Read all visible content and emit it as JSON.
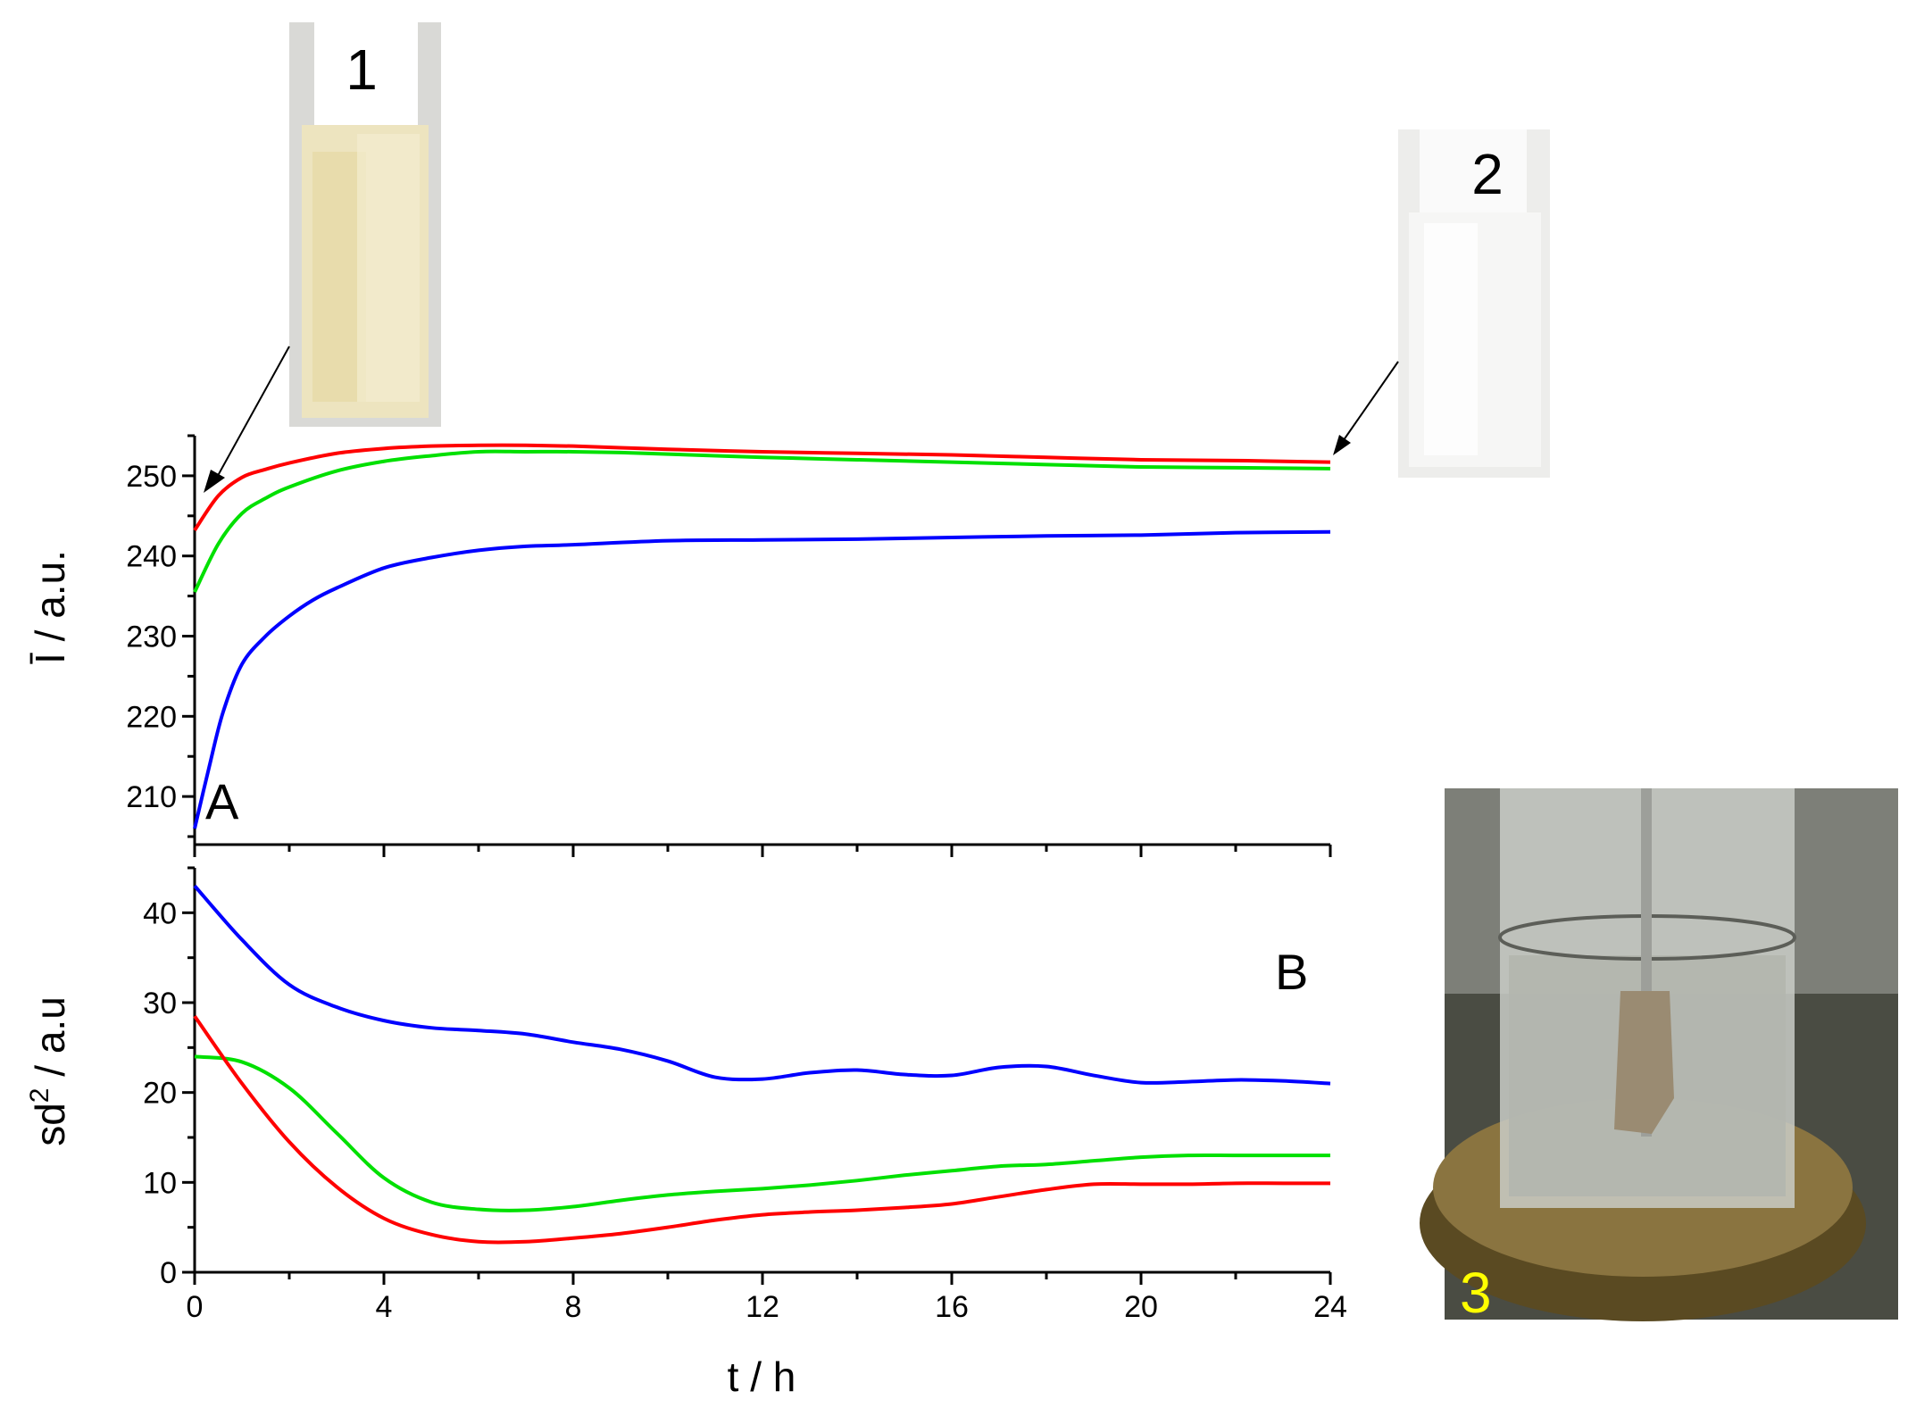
{
  "chart_data": [
    {
      "panel": "A",
      "type": "line",
      "ylabel": "Ī / a.u.",
      "xlabel": "",
      "xlim": [
        0,
        24
      ],
      "ylim": [
        204,
        255
      ],
      "yticks": [
        210,
        220,
        230,
        240,
        250
      ],
      "grid": false,
      "series": [
        {
          "color": "#ff0000",
          "x": [
            0,
            0.5,
            1,
            1.5,
            2,
            3,
            4,
            5,
            6,
            7,
            8,
            9,
            10,
            12,
            14,
            16,
            18,
            20,
            22,
            24
          ],
          "y": [
            243.2,
            247.5,
            249.8,
            250.8,
            251.6,
            252.8,
            253.4,
            253.7,
            253.8,
            253.8,
            253.7,
            253.5,
            253.3,
            253.0,
            252.8,
            252.6,
            252.3,
            252.0,
            251.9,
            251.7
          ]
        },
        {
          "color": "#00e000",
          "x": [
            0,
            0.5,
            1,
            1.5,
            2,
            3,
            4,
            5,
            6,
            7,
            8,
            9,
            10,
            12,
            14,
            16,
            18,
            20,
            22,
            24
          ],
          "y": [
            235.5,
            241.5,
            245.3,
            247.2,
            248.6,
            250.6,
            251.8,
            252.5,
            253.0,
            253.0,
            253.0,
            252.9,
            252.7,
            252.3,
            252.0,
            251.7,
            251.4,
            251.1,
            251.0,
            250.9
          ]
        },
        {
          "color": "#0000ff",
          "x": [
            0,
            0.3,
            0.6,
            1,
            1.5,
            2,
            2.5,
            3,
            4,
            5,
            6,
            7,
            8,
            10,
            12,
            14,
            16,
            18,
            20,
            22,
            24
          ],
          "y": [
            206,
            213.5,
            220.5,
            226.5,
            230,
            232.5,
            234.5,
            236,
            238.5,
            239.8,
            240.7,
            241.2,
            241.4,
            241.9,
            242.0,
            242.1,
            242.3,
            242.5,
            242.6,
            242.9,
            243.0
          ]
        }
      ]
    },
    {
      "panel": "B",
      "type": "line",
      "ylabel": "sd",
      "ylabel_sup": "2",
      "ylabel_tail": " / a.u",
      "xlabel": "t / h",
      "xlim": [
        0,
        24
      ],
      "ylim": [
        0,
        45
      ],
      "xticks": [
        0,
        4,
        8,
        12,
        16,
        20,
        24
      ],
      "yticks": [
        0,
        10,
        20,
        30,
        40
      ],
      "grid": false,
      "series": [
        {
          "color": "#0000ff",
          "x": [
            0,
            1,
            2,
            3,
            4,
            5,
            6,
            7,
            8,
            9,
            10,
            11,
            12,
            13,
            14,
            15,
            16,
            17,
            18,
            19,
            20,
            21,
            22,
            23,
            24
          ],
          "y": [
            43,
            37,
            32,
            29.5,
            28,
            27.2,
            26.9,
            26.5,
            25.6,
            24.8,
            23.5,
            21.7,
            21.5,
            22.2,
            22.5,
            22.0,
            21.9,
            22.8,
            22.9,
            21.9,
            21.1,
            21.2,
            21.4,
            21.3,
            21.0
          ]
        },
        {
          "color": "#00e000",
          "x": [
            0,
            1,
            2,
            3,
            4,
            5,
            6,
            7,
            8,
            9,
            10,
            11,
            12,
            13,
            14,
            15,
            16,
            17,
            18,
            19,
            20,
            21,
            22,
            23,
            24
          ],
          "y": [
            24,
            23.4,
            20.5,
            15.5,
            10.5,
            7.8,
            7.0,
            6.9,
            7.3,
            8.0,
            8.6,
            9.0,
            9.3,
            9.7,
            10.2,
            10.8,
            11.3,
            11.8,
            12.0,
            12.4,
            12.8,
            13.0,
            13.0,
            13.0,
            13.0
          ]
        },
        {
          "color": "#ff0000",
          "x": [
            0,
            1,
            2,
            3,
            4,
            5,
            6,
            7,
            8,
            9,
            10,
            11,
            12,
            13,
            14,
            15,
            16,
            17,
            18,
            19,
            20,
            21,
            22,
            23,
            24
          ],
          "y": [
            28.5,
            21,
            14.5,
            9.5,
            6.0,
            4.2,
            3.4,
            3.4,
            3.8,
            4.3,
            5.0,
            5.8,
            6.4,
            6.7,
            6.9,
            7.2,
            7.6,
            8.4,
            9.2,
            9.8,
            9.8,
            9.8,
            9.9,
            9.9,
            9.9
          ]
        }
      ]
    }
  ],
  "photos": {
    "photo1_label": "1",
    "photo2_label": "2",
    "photo3_label": "3"
  }
}
